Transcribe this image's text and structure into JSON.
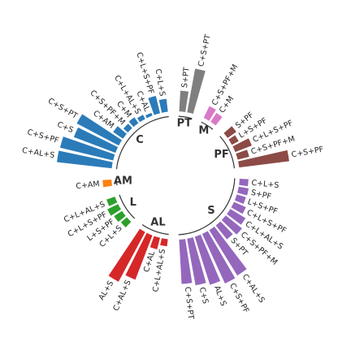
{
  "chart_data": {
    "type": "bar",
    "layout": "circular",
    "title": "",
    "ylim": [
      0,
      1
    ],
    "groups": [
      {
        "name": "C",
        "color": "#2b7bb9",
        "bars": [
          {
            "label": "C+AL+S",
            "value": 0.93
          },
          {
            "label": "C+S+PF",
            "value": 0.92
          },
          {
            "label": "C+S",
            "value": 0.75
          },
          {
            "label": "C+S+PT",
            "value": 0.8
          },
          {
            "label": "C+AM",
            "value": 0.2
          },
          {
            "label": "C+S+PF+M",
            "value": 0.1
          },
          {
            "label": "C+M",
            "value": 0.12
          },
          {
            "label": "C+L+AL+S",
            "value": 0.08
          },
          {
            "label": "C+AL",
            "value": 0.05
          },
          {
            "label": "C+L+S+PF",
            "value": 0.3
          },
          {
            "label": "C+L+S",
            "value": 0.22
          }
        ]
      },
      {
        "name": "PT",
        "color": "#7f7f7f",
        "bars": [
          {
            "label": "S+PT",
            "value": 0.35
          },
          {
            "label": "C+S+PT",
            "value": 0.75
          }
        ]
      },
      {
        "name": "M",
        "color": "#d879c8",
        "bars": [
          {
            "label": "C+S+PF+M",
            "value": 0.22
          },
          {
            "label": "C+M",
            "value": 0.18
          }
        ]
      },
      {
        "name": "PF",
        "color": "#8c4b46",
        "bars": [
          {
            "label": "S+PF",
            "value": 0.18
          },
          {
            "label": "L+S+PF",
            "value": 0.13
          },
          {
            "label": "C+L+S+PF",
            "value": 0.3
          },
          {
            "label": "C+S+PF+M",
            "value": 0.2
          },
          {
            "label": "C+S+PF",
            "value": 0.85
          }
        ]
      },
      {
        "name": "S",
        "color": "#9467bd",
        "bars": [
          {
            "label": "C+L+S",
            "value": 0.15
          },
          {
            "label": "S+PF",
            "value": 0.17
          },
          {
            "label": "L+S+PF",
            "value": 0.16
          },
          {
            "label": "C+L+S+PF",
            "value": 0.22
          },
          {
            "label": "C+L+AL+S",
            "value": 0.3
          },
          {
            "label": "C+S+PF+M",
            "value": 0.35
          },
          {
            "label": "S+PT",
            "value": 0.3
          },
          {
            "label": "C+AL+S",
            "value": 0.9
          },
          {
            "label": "C+S+PF",
            "value": 0.92
          },
          {
            "label": "AL+S",
            "value": 0.85
          },
          {
            "label": "C+S",
            "value": 0.8
          },
          {
            "label": "C+S+PT",
            "value": 0.75
          }
        ]
      },
      {
        "name": "AL",
        "color": "#d62728",
        "bars": [
          {
            "label": "C+L+AL+S",
            "value": 0.12
          },
          {
            "label": "C+AL",
            "value": 0.2
          },
          {
            "label": "C+AL+S",
            "value": 0.8
          },
          {
            "label": "AL+S",
            "value": 0.95
          }
        ]
      },
      {
        "name": "L",
        "color": "#2ca02c",
        "bars": [
          {
            "label": "C+L+S",
            "value": 0.13
          },
          {
            "label": "L+S+PF",
            "value": 0.16
          },
          {
            "label": "C+L+S+PF",
            "value": 0.2
          },
          {
            "label": "C+L+AL+S",
            "value": 0.15
          }
        ]
      },
      {
        "name": "AM",
        "color": "#ff7f0e",
        "bars": [
          {
            "label": "C+AM",
            "value": 0.15
          }
        ]
      }
    ]
  }
}
